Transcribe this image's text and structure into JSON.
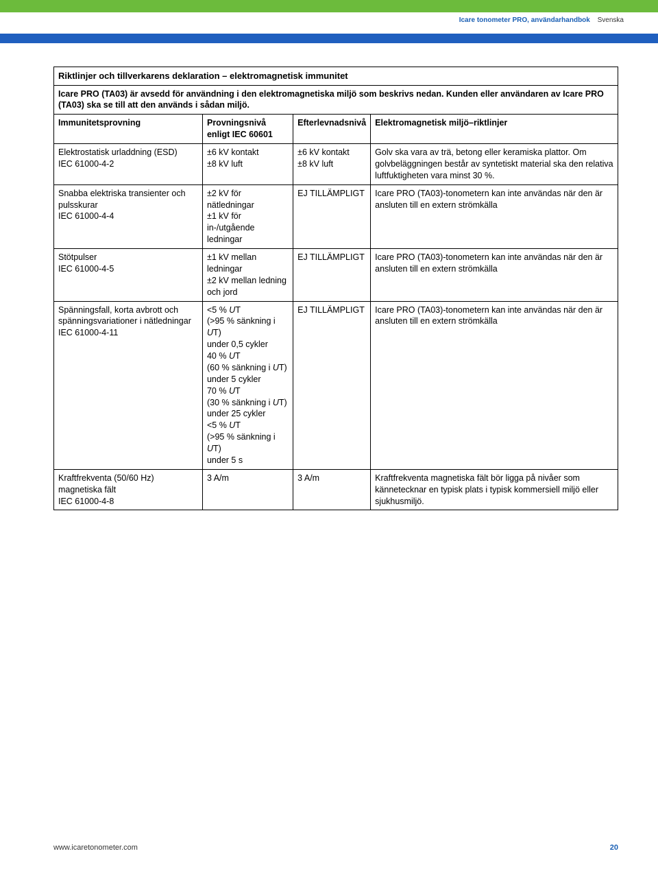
{
  "header": {
    "product": "Icare tonometer PRO, användarhandbok",
    "lang": "Svenska"
  },
  "table": {
    "title": "Riktlinjer och tillverkarens deklaration – elektromagnetisk immunitet",
    "intro": "Icare PRO (TA03) är avsedd för användning i den elektromagnetiska miljö som beskrivs nedan. Kunden eller användaren av Icare PRO (TA03) ska se till att den används i sådan miljö.",
    "headers": {
      "c1": "Immunitetsprovning",
      "c2": "Provningsnivå enligt IEC 60601",
      "c3": "Efterlevnadsnivå",
      "c4": "Elektromagnetisk miljö–riktlinjer"
    },
    "rows": [
      {
        "c1": "Elektrostatisk urladdning (ESD)\nIEC 61000-4-2",
        "c2": "±6 kV kontakt\n±8 kV luft",
        "c3": "±6 kV kontakt\n±8 kV luft",
        "c4": "Golv ska vara av trä, betong eller keramiska plattor. Om golvbeläggningen består av syntetiskt material ska den relativa luftfuktigheten vara minst 30 %."
      },
      {
        "c1": "Snabba elektriska transienter och pulsskurar\nIEC 61000-4-4",
        "c2": "±2 kV för nätledningar\n±1 kV för in-/utgående ledningar",
        "c3": "EJ TILLÄMPLIGT",
        "c4": "Icare PRO (TA03)-tonometern kan inte användas när den är ansluten till en extern strömkälla"
      },
      {
        "c1": "Stötpulser\nIEC 61000-4-5",
        "c2": "±1 kV mellan ledningar\n±2 kV mellan ledning och jord",
        "c3": "EJ TILLÄMPLIGT",
        "c4": "Icare PRO (TA03)-tonometern kan inte användas när den är ansluten till en extern strömkälla"
      },
      {
        "c1": "Spänningsfall, korta avbrott och spänningsvariationer i nätledningar\nIEC 61000-4-11",
        "c2_html": "&lt;5 % <span class='ital'>U</span>T<br>(&gt;95 % sänkning i <span class='ital'>U</span>T)<br>under 0,5 cykler<br>40 % <span class='ital'>U</span>T<br>(60 % sänkning i <span class='ital'>U</span>T)<br>under 5 cykler<br>70 % <span class='ital'>U</span>T<br>(30 % sänkning i <span class='ital'>U</span>T)<br>under 25 cykler<br>&lt;5 % <span class='ital'>U</span>T<br>(&gt;95 % sänkning i <span class='ital'>U</span>T)<br>under 5 s",
        "c3": "EJ TILLÄMPLIGT",
        "c4": "Icare PRO (TA03)-tonometern kan inte användas när den är ansluten till en extern strömkälla"
      },
      {
        "c1": "Kraftfrekventa (50/60 Hz) magnetiska fält\nIEC 61000-4-8",
        "c2": "3 A/m",
        "c3": "3 A/m",
        "c4": "Kraftfrekventa magnetiska fält bör ligga på nivåer som kännetecknar en typisk plats i typisk kommersiell miljö eller sjukhusmiljö."
      }
    ]
  },
  "footer": {
    "url": "www.icaretonometer.com",
    "page": "20"
  },
  "colors": {
    "green": "#6cbb3c",
    "blue": "#1f5fbf",
    "link": "#1a5fb4"
  }
}
